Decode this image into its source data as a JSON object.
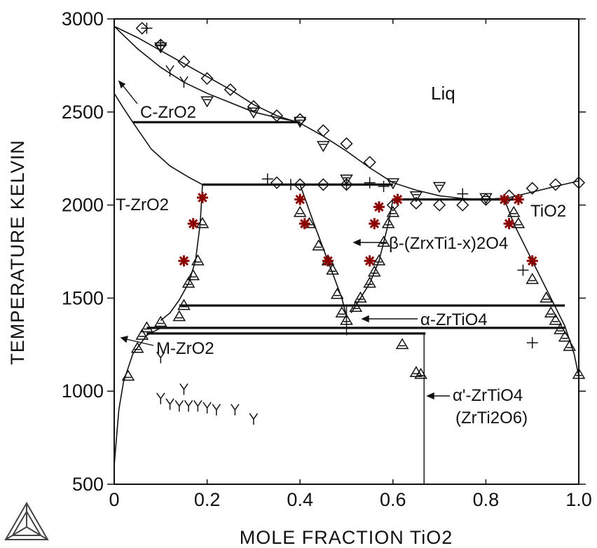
{
  "chart_data": {
    "type": "scatter",
    "title": "",
    "xlabel": "MOLE FRACTION TiO2",
    "ylabel": "TEMPERATURE  KELVIN",
    "xlim": [
      0,
      1.0
    ],
    "ylim": [
      500,
      3000
    ],
    "x_ticks": [
      0,
      0.2,
      0.4,
      0.6,
      0.8,
      1.0
    ],
    "x_tick_labels": [
      "0",
      "0.2",
      "0.4",
      "0.6",
      "0.8",
      "1.0"
    ],
    "y_ticks": [
      500,
      1000,
      1500,
      2000,
      2500,
      3000
    ],
    "y_tick_labels": [
      "500",
      "1000",
      "1500",
      "2000",
      "2500",
      "3000"
    ],
    "labels": {
      "liq": "Liq",
      "c_zro2": "C-ZrO2",
      "t_zro2": "T-ZrO2",
      "tio2": "TiO2",
      "beta": "β-(ZrxTi1-x)2O4",
      "alpha": "α-ZrTiO4",
      "m_zro2": "M-ZrO2",
      "alpha_prime": "α'-ZrTiO4",
      "alpha_prime_sub": "(ZrTi2O6)"
    },
    "lines": [
      {
        "name": "liquidus-left",
        "x": [
          0,
          0.05,
          0.1,
          0.15,
          0.2,
          0.25,
          0.3,
          0.35,
          0.4,
          0.45,
          0.5,
          0.55,
          0.6,
          0.65,
          0.7,
          0.75,
          0.8,
          0.85
        ],
        "y": [
          2960,
          2900,
          2830,
          2760,
          2690,
          2620,
          2540,
          2480,
          2440,
          2370,
          2290,
          2200,
          2120,
          2080,
          2050,
          2035,
          2030,
          2040
        ]
      },
      {
        "name": "liquidus-right",
        "x": [
          0.85,
          0.9,
          0.95,
          1.0
        ],
        "y": [
          2040,
          2070,
          2100,
          2130
        ]
      },
      {
        "name": "solidus-cubic",
        "x": [
          0,
          0.05,
          0.1,
          0.15,
          0.2,
          0.25,
          0.3,
          0.35,
          0.4
        ],
        "y": [
          2960,
          2840,
          2740,
          2660,
          2600,
          2550,
          2500,
          2470,
          2445
        ]
      },
      {
        "name": "c-t-boundary-left",
        "x": [
          0,
          0.02,
          0.04
        ],
        "y": [
          2600,
          2520,
          2445
        ]
      },
      {
        "name": "c-t-boundary-lower",
        "x": [
          0.04,
          0.08,
          0.12,
          0.16,
          0.19
        ],
        "y": [
          2445,
          2300,
          2210,
          2150,
          2110
        ]
      },
      {
        "name": "t-zro2-solvus",
        "x": [
          0.19,
          0.185,
          0.175,
          0.16,
          0.14,
          0.12,
          0.1
        ],
        "y": [
          2110,
          1900,
          1700,
          1580,
          1490,
          1420,
          1380
        ]
      },
      {
        "name": "beta-left",
        "x": [
          0.4,
          0.43,
          0.46,
          0.49,
          0.5
        ],
        "y": [
          2110,
          1900,
          1700,
          1500,
          1400
        ]
      },
      {
        "name": "beta-right",
        "x": [
          0.6,
          0.59,
          0.57,
          0.55,
          0.53,
          0.51
        ],
        "y": [
          2030,
          1900,
          1700,
          1580,
          1500,
          1420
        ]
      },
      {
        "name": "tio2-solvus",
        "x": [
          0.84,
          0.86,
          0.9,
          0.94,
          0.97,
          0.99,
          1.0
        ],
        "y": [
          2030,
          1900,
          1700,
          1500,
          1350,
          1200,
          1080
        ]
      },
      {
        "name": "m-zro2-solvus",
        "x": [
          0,
          0.01,
          0.02,
          0.04,
          0.07,
          0.1
        ],
        "y": [
          600,
          900,
          1050,
          1200,
          1300,
          1340
        ]
      }
    ],
    "horizontal_lines": [
      {
        "y": 2445,
        "x": [
          0.04,
          0.4
        ]
      },
      {
        "y": 2110,
        "x": [
          0.19,
          0.6
        ]
      },
      {
        "y": 2030,
        "x": [
          0.6,
          0.86
        ]
      },
      {
        "y": 1460,
        "x": [
          0.14,
          0.97
        ]
      },
      {
        "y": 1340,
        "x": [
          0.07,
          0.97
        ]
      },
      {
        "y": 1310,
        "x": [
          0.07,
          0.67
        ]
      }
    ],
    "vertical_lines": [
      {
        "x": 0.5,
        "y": [
          1300,
          1460
        ]
      },
      {
        "x": 0.667,
        "y": [
          500,
          1310
        ]
      }
    ],
    "series": [
      {
        "marker": "diamond",
        "x": [
          0.06,
          0.1,
          0.15,
          0.2,
          0.25,
          0.3,
          0.35,
          0.4,
          0.45,
          0.5,
          0.55,
          0.35,
          0.4,
          0.45,
          0.5,
          0.6,
          0.65,
          0.7,
          0.75,
          0.8,
          0.85,
          0.9,
          0.95,
          1.0
        ],
        "y": [
          2950,
          2860,
          2770,
          2680,
          2620,
          2530,
          2480,
          2460,
          2400,
          2330,
          2230,
          2120,
          2110,
          2110,
          2110,
          2000,
          2010,
          2000,
          2000,
          2030,
          2050,
          2090,
          2110,
          2120
        ]
      },
      {
        "marker": "down-triangle",
        "x": [
          0.1,
          0.2,
          0.3,
          0.4,
          0.45,
          0.5,
          0.6,
          0.65,
          0.7,
          0.8
        ],
        "y": [
          2850,
          2560,
          2500,
          2450,
          2320,
          2140,
          2120,
          2050,
          2100,
          2040
        ]
      },
      {
        "marker": "y",
        "x": [
          0.12,
          0.15,
          0.1,
          0.15,
          0.1,
          0.12,
          0.14,
          0.16,
          0.18,
          0.2,
          0.22,
          0.26,
          0.3
        ],
        "y": [
          2720,
          2660,
          1180,
          1010,
          960,
          930,
          920,
          920,
          920,
          910,
          900,
          900,
          850
        ]
      },
      {
        "marker": "up-triangle",
        "x": [
          0.03,
          0.05,
          0.06,
          0.07,
          0.1,
          0.14,
          0.15,
          0.16,
          0.17,
          0.18,
          0.19,
          0.4,
          0.42,
          0.44,
          0.46,
          0.47,
          0.48,
          0.49,
          0.5,
          0.52,
          0.53,
          0.55,
          0.56,
          0.57,
          0.58,
          0.59,
          0.6,
          0.62,
          0.65,
          0.66,
          0.86,
          0.87,
          0.9,
          0.93,
          0.94,
          0.95,
          0.96,
          0.97,
          0.98,
          1.0
        ],
        "y": [
          1080,
          1230,
          1300,
          1340,
          1370,
          1400,
          1460,
          1580,
          1620,
          1700,
          1900,
          1960,
          1900,
          1780,
          1700,
          1650,
          1520,
          1420,
          1380,
          1450,
          1500,
          1580,
          1640,
          1700,
          1800,
          1900,
          1960,
          1250,
          1100,
          1090,
          1960,
          1900,
          1600,
          1500,
          1420,
          1380,
          1330,
          1290,
          1240,
          1090
        ]
      },
      {
        "marker": "plus",
        "x": [
          0.07,
          0.1,
          0.33,
          0.38,
          0.5,
          0.55,
          0.58,
          0.75,
          0.88,
          0.9
        ],
        "y": [
          2950,
          2860,
          2140,
          2110,
          2110,
          2120,
          2100,
          2060,
          1650,
          1260
        ]
      },
      {
        "marker": "red-asterisk",
        "x": [
          0.15,
          0.17,
          0.19,
          0.4,
          0.41,
          0.46,
          0.55,
          0.56,
          0.57,
          0.61,
          0.84,
          0.85,
          0.87,
          0.9
        ],
        "y": [
          1700,
          1900,
          2040,
          2030,
          1900,
          1700,
          1700,
          1900,
          1990,
          2030,
          2030,
          1900,
          2030,
          1700
        ]
      }
    ]
  }
}
